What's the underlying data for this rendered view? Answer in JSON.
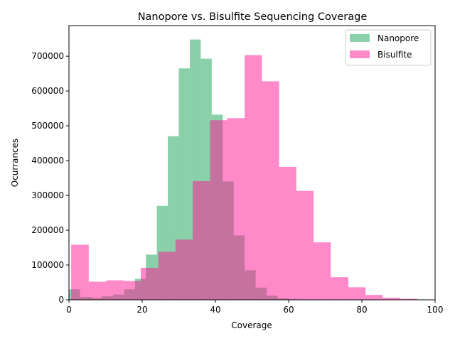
{
  "chart_data": {
    "type": "histogram",
    "title": "Nanopore vs. Bisulfite Sequencing Coverage",
    "xlabel": "Coverage",
    "ylabel": "Ocurrances",
    "xlim": [
      0,
      100
    ],
    "ylim": [
      0,
      788000
    ],
    "x_ticks": [
      0,
      20,
      40,
      60,
      80,
      100
    ],
    "y_ticks": [
      0,
      100000,
      200000,
      300000,
      400000,
      500000,
      600000,
      700000
    ],
    "grid": false,
    "legend_position": "upper right",
    "series": [
      {
        "name": "Nanopore",
        "color": "#3cb371",
        "alpha": 0.6,
        "bins": [
          [
            0,
            0.6,
            30000
          ],
          [
            0.6,
            3.0,
            30000
          ],
          [
            3.0,
            6.3,
            8000
          ],
          [
            6.3,
            9.0,
            5000
          ],
          [
            9.0,
            12.1,
            10000
          ],
          [
            12.1,
            15.1,
            15000
          ],
          [
            15.1,
            18.0,
            30000
          ],
          [
            18.0,
            21.0,
            60000
          ],
          [
            21.0,
            24.0,
            130000
          ],
          [
            24.0,
            27.0,
            270000
          ],
          [
            27.0,
            30.0,
            470000
          ],
          [
            30.0,
            33.0,
            665000
          ],
          [
            33.0,
            36.0,
            748000
          ],
          [
            36.0,
            39.0,
            693000
          ],
          [
            39.0,
            42.0,
            532000
          ],
          [
            42.0,
            45.0,
            340000
          ],
          [
            45.0,
            48.0,
            185000
          ],
          [
            48.0,
            51.0,
            85000
          ],
          [
            51.0,
            54.0,
            35000
          ],
          [
            54.0,
            57.0,
            12000
          ],
          [
            57.0,
            60.0,
            4000
          ],
          [
            60.0,
            63.0,
            1500
          ]
        ]
      },
      {
        "name": "Bisulfite",
        "color": "#ff1493",
        "alpha": 0.5,
        "bins": [
          [
            0.6,
            5.4,
            158000
          ],
          [
            5.4,
            10.2,
            52000
          ],
          [
            10.2,
            14.9,
            56000
          ],
          [
            14.9,
            19.6,
            54000
          ],
          [
            19.6,
            24.4,
            92000
          ],
          [
            24.4,
            29.1,
            138000
          ],
          [
            29.1,
            33.8,
            173000
          ],
          [
            33.8,
            38.5,
            341000
          ],
          [
            38.5,
            43.2,
            516000
          ],
          [
            43.2,
            48.0,
            522000
          ],
          [
            48.0,
            52.7,
            703000
          ],
          [
            52.7,
            57.4,
            628000
          ],
          [
            57.4,
            62.1,
            382000
          ],
          [
            62.1,
            66.8,
            313000
          ],
          [
            66.8,
            71.5,
            165000
          ],
          [
            71.5,
            76.3,
            65000
          ],
          [
            76.3,
            81.0,
            36000
          ],
          [
            81.0,
            85.7,
            14000
          ],
          [
            85.7,
            90.4,
            6000
          ],
          [
            90.4,
            95.1,
            3000
          ],
          [
            95.1,
            100,
            1000
          ]
        ]
      }
    ]
  }
}
